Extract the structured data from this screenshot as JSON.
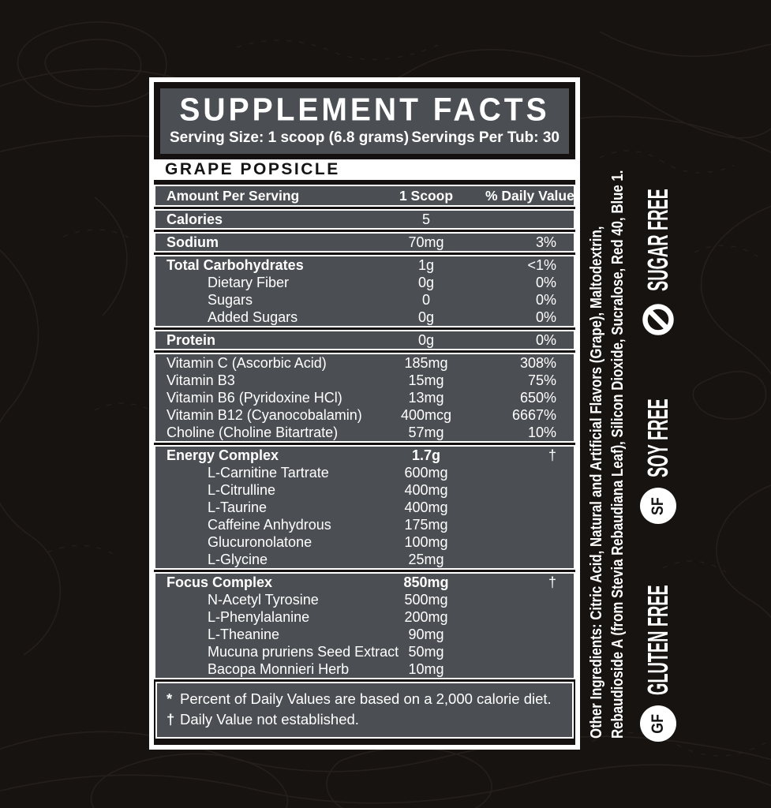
{
  "header": {
    "title": "SUPPLEMENT FACTS",
    "serving_size": "Serving Size: 1 scoop (6.8 grams)",
    "servings_per_tub": "Servings Per Tub: 30"
  },
  "flavor": "GRAPE POPSICLE",
  "table": {
    "columns": [
      "Amount Per Serving",
      "1 Scoop",
      "% Daily Value*"
    ],
    "groups": [
      {
        "rows": [
          {
            "name": "Calories",
            "bold": true,
            "amount": "5",
            "dv": ""
          }
        ]
      },
      {
        "rows": [
          {
            "name": "Sodium",
            "bold": true,
            "amount": "70mg",
            "dv": "3%"
          }
        ]
      },
      {
        "rows": [
          {
            "name": "Total Carbohydrates",
            "bold": true,
            "amount": "1g",
            "dv": "<1%"
          },
          {
            "name": "Dietary Fiber",
            "indent": true,
            "amount": "0g",
            "dv": "0%"
          },
          {
            "name": "Sugars",
            "indent": true,
            "amount": "0",
            "dv": "0%"
          },
          {
            "name": "Added Sugars",
            "indent": true,
            "amount": "0g",
            "dv": "0%"
          }
        ]
      },
      {
        "rows": [
          {
            "name": "Protein",
            "bold": true,
            "amount": "0g",
            "dv": "0%"
          }
        ]
      },
      {
        "rows": [
          {
            "name": "Vitamin C (Ascorbic Acid)",
            "amount": "185mg",
            "dv": "308%"
          },
          {
            "name": "Vitamin B3",
            "amount": "15mg",
            "dv": "75%"
          },
          {
            "name": "Vitamin B6 (Pyridoxine HCl)",
            "amount": "13mg",
            "dv": "650%"
          },
          {
            "name": "Vitamin B12 (Cyanocobalamin)",
            "amount": "400mcg",
            "dv": "6667%"
          },
          {
            "name": "Choline (Choline Bitartrate)",
            "amount": "57mg",
            "dv": "10%"
          }
        ]
      },
      {
        "rows": [
          {
            "name": "Energy Complex",
            "bold": true,
            "amount": "1.7g",
            "amount_bold": true,
            "dv": "†"
          },
          {
            "name": "L-Carnitine Tartrate",
            "indent": true,
            "amount": "600mg",
            "dv": ""
          },
          {
            "name": "L-Citrulline",
            "indent": true,
            "amount": "400mg",
            "dv": ""
          },
          {
            "name": "L-Taurine",
            "indent": true,
            "amount": "400mg",
            "dv": ""
          },
          {
            "name": "Caffeine Anhydrous",
            "indent": true,
            "amount": "175mg",
            "dv": ""
          },
          {
            "name": "Glucuronolatone",
            "indent": true,
            "amount": "100mg",
            "dv": ""
          },
          {
            "name": "L-Glycine",
            "indent": true,
            "amount": "25mg",
            "dv": ""
          }
        ]
      },
      {
        "rows": [
          {
            "name": "Focus Complex",
            "bold": true,
            "amount": "850mg",
            "amount_bold": true,
            "dv": "†"
          },
          {
            "name": "N-Acetyl Tyrosine",
            "indent": true,
            "amount": "500mg",
            "dv": ""
          },
          {
            "name": "L-Phenylalanine",
            "indent": true,
            "amount": "200mg",
            "dv": ""
          },
          {
            "name": "L-Theanine",
            "indent": true,
            "amount": "90mg",
            "dv": ""
          },
          {
            "name": "Mucuna pruriens Seed Extract",
            "indent": true,
            "amount": "50mg",
            "dv": ""
          },
          {
            "name": "Bacopa Monnieri Herb",
            "indent": true,
            "amount": "10mg",
            "dv": ""
          }
        ]
      }
    ]
  },
  "footnotes": [
    {
      "marker": "*",
      "text": "Percent of Daily Values are based on a 2,000 calorie diet."
    },
    {
      "marker": "†",
      "text": "Daily Value not established."
    }
  ],
  "side": {
    "ingredients_lead": "Other Ingredients:",
    "ingredients_line1": " Citric Acid, Natural and Artificial Flavors (Grape), Maltodextrin,",
    "ingredients_line2": "Rebaudioside A (from Stevia Rebaudiana Leaf), Silicon Dioxide, Sucralose, Red 40, Blue 1.",
    "badges": [
      {
        "icon_name": "gluten-free-gf-circle-icon",
        "monogram": "GF",
        "label": "GLUTEN FREE"
      },
      {
        "icon_name": "soy-free-sf-circle-icon",
        "monogram": "SF",
        "label": "SOY FREE"
      },
      {
        "icon_name": "no-sugar-prohibition-icon",
        "monogram": "",
        "label": "SUGAR FREE"
      }
    ]
  },
  "colors": {
    "background": "#171311",
    "contour": "#2e2823",
    "panel_black": "#141110",
    "block_gray": "#4b4e53",
    "white": "#ffffff",
    "text_dark": "#141414"
  }
}
